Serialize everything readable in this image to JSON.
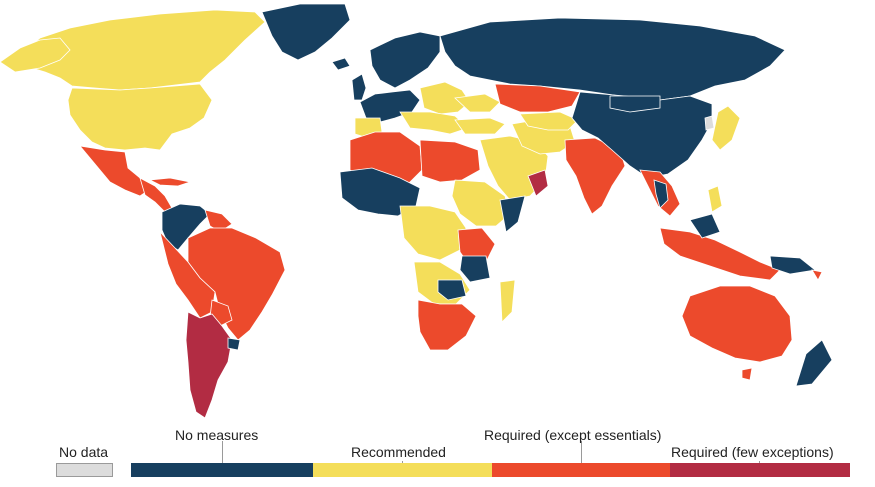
{
  "legend": {
    "no_data": {
      "label": "No data",
      "color": "#dcdcdc"
    },
    "categories": [
      {
        "label": "No measures",
        "color": "#173f5f"
      },
      {
        "label": "Recommended",
        "color": "#f4de5a"
      },
      {
        "label": "Required (except essentials)",
        "color": "#ec4a2c"
      },
      {
        "label": "Required (few exceptions)",
        "color": "#b22c43"
      }
    ]
  },
  "colors": {
    "background": "#ffffff",
    "border": "#ffffff",
    "no_data": "#dcdcdc",
    "no_measures": "#173f5f",
    "recommended": "#f4de5a",
    "required_except_essentials": "#ec4a2c",
    "required_few_exceptions": "#b22c43"
  }
}
